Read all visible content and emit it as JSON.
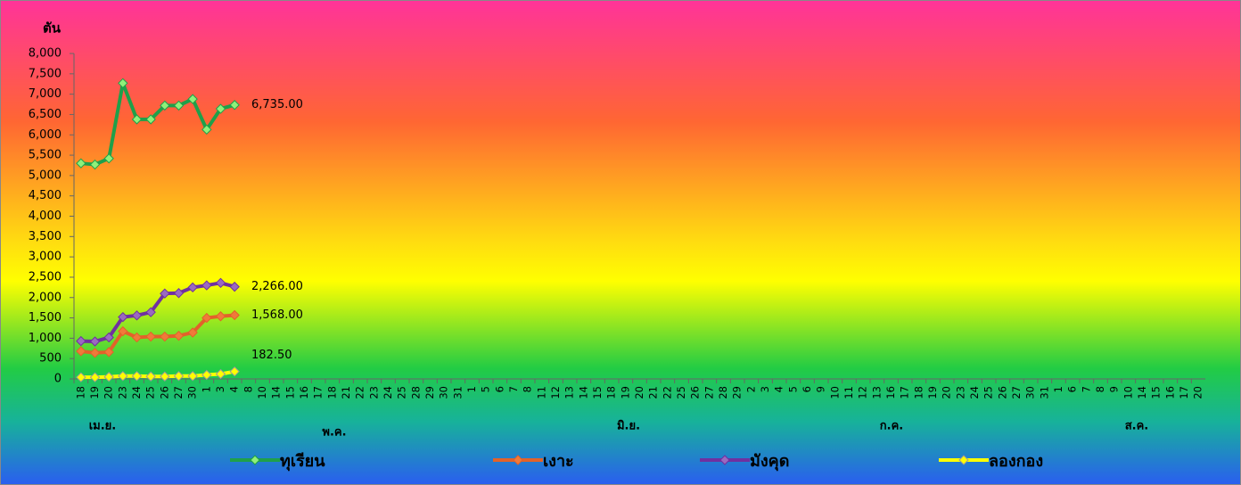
{
  "chart_data": {
    "type": "line",
    "y_label": "ตัน",
    "categories": [
      "18",
      "19",
      "20",
      "23",
      "24",
      "25",
      "26",
      "27",
      "30",
      "1",
      "3",
      "4",
      "8",
      "10",
      "14",
      "15",
      "16",
      "17",
      "18",
      "21",
      "22",
      "23",
      "24",
      "25",
      "28",
      "29",
      "30",
      "31",
      "1",
      "5",
      "6",
      "7",
      "8",
      "11",
      "12",
      "13",
      "14",
      "15",
      "18",
      "19",
      "20",
      "21",
      "22",
      "25",
      "26",
      "27",
      "28",
      "29",
      "2",
      "3",
      "4",
      "5",
      "6",
      "9",
      "10",
      "11",
      "12",
      "13",
      "16",
      "17",
      "18",
      "19",
      "20",
      "23",
      "24",
      "25",
      "26",
      "27",
      "30",
      "31",
      "1",
      "6",
      "7",
      "8",
      "9",
      "10",
      "14",
      "15",
      "16",
      "17",
      "20"
    ],
    "x_groups": [
      "เม.ย.",
      "พ.ค.",
      "มิ.ย.",
      "ก.ค.",
      "ส.ค."
    ],
    "ylim": [
      0,
      8000
    ],
    "yticks": [
      0,
      500,
      {
        "value": 1000,
        "label": "1,000"
      },
      {
        "value": 1500,
        "label": "1,500"
      },
      {
        "value": 2000,
        "label": "2,000"
      },
      {
        "value": 2500,
        "label": "2,500"
      },
      {
        "value": 3000,
        "label": "3,000"
      },
      {
        "value": 3500,
        "label": "3,500"
      },
      {
        "value": 4000,
        "label": "4,000"
      },
      {
        "value": 4500,
        "label": "4,500"
      },
      {
        "value": 5000,
        "label": "5,000"
      },
      {
        "value": 5500,
        "label": "5,500"
      },
      {
        "value": 6000,
        "label": "6,000"
      },
      {
        "value": 6500,
        "label": "6,500"
      },
      {
        "value": 7000,
        "label": "7,000"
      },
      {
        "value": 7500,
        "label": "7,500"
      },
      {
        "value": 8000,
        "label": "8,000"
      }
    ],
    "grid": false,
    "legend": "bottom",
    "series": [
      {
        "name": "ทุเรียน",
        "color": "#1fa04a",
        "marker_color": "#8ff07a",
        "values": [
          5300,
          5270,
          5420,
          7270,
          6380,
          6380,
          6720,
          6720,
          6880,
          6130,
          6640,
          6735,
          null,
          null,
          null,
          null,
          null,
          null,
          null,
          null,
          null,
          null,
          null,
          null,
          null,
          null,
          null,
          null,
          null,
          null,
          null,
          null,
          null,
          null,
          null,
          null,
          null,
          null,
          null,
          null,
          null,
          null,
          null,
          null,
          null,
          null,
          null,
          null,
          null,
          null,
          null,
          null,
          null,
          null,
          null,
          null,
          null,
          null,
          null,
          null,
          null,
          null,
          null,
          null,
          null,
          null,
          null,
          null,
          null,
          null,
          null,
          null,
          null,
          null,
          null,
          null,
          null,
          null,
          null,
          null,
          null
        ],
        "value_labels": [
          null,
          null,
          null,
          null,
          null,
          null,
          null,
          null,
          null,
          null,
          null,
          "6,735.00",
          null,
          null,
          null,
          null,
          null,
          null,
          null,
          null,
          null,
          null,
          null,
          null,
          null,
          null,
          null,
          null,
          null,
          null,
          null,
          null,
          null,
          null,
          null,
          null,
          null,
          null,
          null,
          null,
          null,
          null,
          null,
          null,
          null,
          null,
          null,
          null,
          null,
          null,
          null,
          null,
          null,
          null,
          null,
          null,
          null,
          null,
          null,
          null,
          null,
          null,
          null,
          null,
          null,
          null,
          null,
          null,
          null,
          null,
          null,
          null,
          null,
          null,
          null,
          null,
          null,
          null,
          null,
          null,
          null
        ]
      },
      {
        "name": "เงาะ",
        "color": "#e2622a",
        "marker_color": "#f07a3a",
        "values": [
          680,
          640,
          660,
          1170,
          1020,
          1040,
          1040,
          1060,
          1140,
          1500,
          1540,
          1568,
          null,
          null,
          null,
          null,
          null,
          null,
          null,
          null,
          null,
          null,
          null,
          null,
          null,
          null,
          null,
          null,
          null,
          null,
          null,
          null,
          null,
          null,
          null,
          null,
          null,
          null,
          null,
          null,
          null,
          null,
          null,
          null,
          null,
          null,
          null,
          null,
          null,
          null,
          null,
          null,
          null,
          null,
          null,
          null,
          null,
          null,
          null,
          null,
          null,
          null,
          null,
          null,
          null,
          null,
          null,
          null,
          null,
          null,
          null,
          null,
          null,
          null,
          null,
          null,
          null,
          null,
          null,
          null,
          null
        ],
        "value_labels": [
          null,
          null,
          null,
          null,
          null,
          null,
          null,
          null,
          null,
          null,
          null,
          "1,568.00",
          null,
          null,
          null,
          null,
          null,
          null,
          null,
          null,
          null,
          null,
          null,
          null,
          null,
          null,
          null,
          null,
          null,
          null,
          null,
          null,
          null,
          null,
          null,
          null,
          null,
          null,
          null,
          null,
          null,
          null,
          null,
          null,
          null,
          null,
          null,
          null,
          null,
          null,
          null,
          null,
          null,
          null,
          null,
          null,
          null,
          null,
          null,
          null,
          null,
          null,
          null,
          null,
          null,
          null,
          null,
          null,
          null,
          null,
          null,
          null,
          null,
          null,
          null,
          null,
          null,
          null,
          null,
          null,
          null
        ]
      },
      {
        "name": "มังคุด",
        "color": "#7030a0",
        "marker_color": "#9a6ac0",
        "values": [
          930,
          920,
          1020,
          1520,
          1560,
          1640,
          2100,
          2110,
          2250,
          2300,
          2360,
          2266,
          null,
          null,
          null,
          null,
          null,
          null,
          null,
          null,
          null,
          null,
          null,
          null,
          null,
          null,
          null,
          null,
          null,
          null,
          null,
          null,
          null,
          null,
          null,
          null,
          null,
          null,
          null,
          null,
          null,
          null,
          null,
          null,
          null,
          null,
          null,
          null,
          null,
          null,
          null,
          null,
          null,
          null,
          null,
          null,
          null,
          null,
          null,
          null,
          null,
          null,
          null,
          null,
          null,
          null,
          null,
          null,
          null,
          null,
          null,
          null,
          null,
          null,
          null,
          null,
          null,
          null,
          null,
          null,
          null
        ],
        "value_labels": [
          null,
          null,
          null,
          null,
          null,
          null,
          null,
          null,
          null,
          null,
          null,
          "2,266.00",
          null,
          null,
          null,
          null,
          null,
          null,
          null,
          null,
          null,
          null,
          null,
          null,
          null,
          null,
          null,
          null,
          null,
          null,
          null,
          null,
          null,
          null,
          null,
          null,
          null,
          null,
          null,
          null,
          null,
          null,
          null,
          null,
          null,
          null,
          null,
          null,
          null,
          null,
          null,
          null,
          null,
          null,
          null,
          null,
          null,
          null,
          null,
          null,
          null,
          null,
          null,
          null,
          null,
          null,
          null,
          null,
          null,
          null,
          null,
          null,
          null,
          null,
          null,
          null,
          null,
          null,
          null,
          null,
          null
        ]
      },
      {
        "name": "ลองกอง",
        "color": "#ffff00",
        "marker_color": "#ffff00",
        "values": [
          40,
          40,
          50,
          70,
          70,
          60,
          60,
          70,
          70,
          100,
          120,
          182.5,
          null,
          null,
          null,
          null,
          null,
          null,
          null,
          null,
          null,
          null,
          null,
          null,
          null,
          null,
          null,
          null,
          null,
          null,
          null,
          null,
          null,
          null,
          null,
          null,
          null,
          null,
          null,
          null,
          null,
          null,
          null,
          null,
          null,
          null,
          null,
          null,
          null,
          null,
          null,
          null,
          null,
          null,
          null,
          null,
          null,
          null,
          null,
          null,
          null,
          null,
          null,
          null,
          null,
          null,
          null,
          null,
          null,
          null,
          null,
          null,
          null,
          null,
          null,
          null,
          null,
          null,
          null,
          null,
          null
        ],
        "value_labels": [
          null,
          null,
          null,
          null,
          null,
          null,
          null,
          null,
          null,
          null,
          null,
          "182.50",
          null,
          null,
          null,
          null,
          null,
          null,
          null,
          null,
          null,
          null,
          null,
          null,
          null,
          null,
          null,
          null,
          null,
          null,
          null,
          null,
          null,
          null,
          null,
          null,
          null,
          null,
          null,
          null,
          null,
          null,
          null,
          null,
          null,
          null,
          null,
          null,
          null,
          null,
          null,
          null,
          null,
          null,
          null,
          null,
          null,
          null,
          null,
          null,
          null,
          null,
          null,
          null,
          null,
          null,
          null,
          null,
          null,
          null,
          null,
          null,
          null,
          null,
          null,
          null,
          null,
          null,
          null,
          null,
          null
        ]
      }
    ]
  }
}
